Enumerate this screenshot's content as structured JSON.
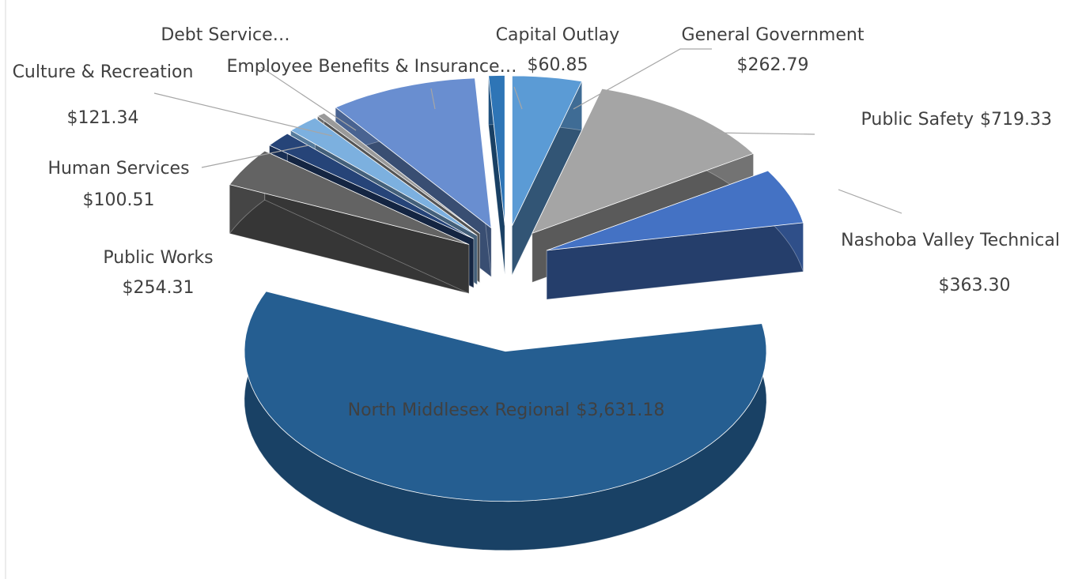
{
  "chart_data": {
    "type": "pie3d",
    "categories": [
      "General Government",
      "Public Safety",
      "Nashoba Valley Technical",
      "North Middlesex Regional",
      "Public Works",
      "Human Services",
      "Culture & Recreation",
      "Debt Service…",
      "Employee Benefits & Insurance…",
      "Capital Outlay"
    ],
    "values": [
      262.79,
      719.33,
      363.3,
      3631.18,
      254.31,
      100.51,
      121.34,
      30,
      560,
      60.85
    ],
    "value_labels": [
      "$262.79",
      "$719.33",
      "$363.30",
      "$3,631.18",
      "$254.31",
      "$100.51",
      "$121.34",
      null,
      null,
      "$60.85"
    ],
    "colors": [
      "#5b9bd5",
      "#a5a5a5",
      "#4472c4",
      "#255e91",
      "#636363",
      "#264478",
      "#7cb0df",
      "#9a9a9a",
      "#698ed0",
      "#2e75b6"
    ]
  }
}
